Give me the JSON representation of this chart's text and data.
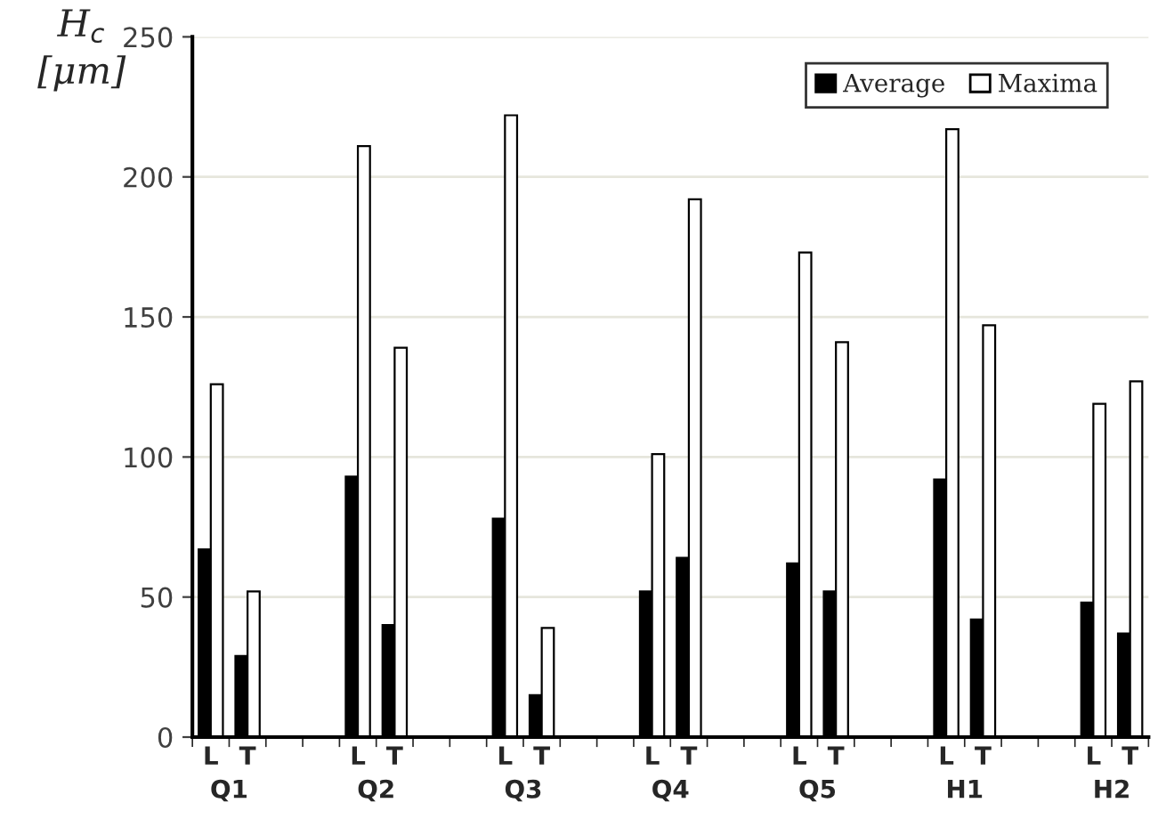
{
  "chart_data": {
    "type": "bar",
    "ylabel": "H$_{c}$\n[μm]",
    "categories": [
      "L",
      "T",
      null,
      null,
      "L",
      "T",
      null,
      null,
      "L",
      "T",
      null,
      null,
      "L",
      "T",
      null,
      null,
      "L",
      "T",
      null,
      null,
      "L",
      "T",
      null,
      null,
      "L",
      "T"
    ],
    "annotations": [
      "Q1",
      "Q2",
      "Q3",
      "Q4",
      "Q5",
      "H1",
      "H2"
    ],
    "series": [
      {
        "name": "Average",
        "color": "#000000",
        "values": [
          67,
          29,
          null,
          null,
          93,
          40,
          null,
          null,
          78,
          15,
          null,
          null,
          52,
          64,
          null,
          null,
          62,
          52,
          null,
          null,
          92,
          42,
          null,
          null,
          48,
          37
        ]
      },
      {
        "name": "Maxima",
        "color": "#ffffff",
        "values": [
          126,
          52,
          null,
          null,
          211,
          139,
          null,
          null,
          222,
          39,
          null,
          null,
          101,
          192,
          null,
          null,
          173,
          141,
          null,
          null,
          217,
          147,
          null,
          null,
          119,
          127
        ]
      }
    ],
    "ylim": [
      0,
      250
    ],
    "yticks": [
      0,
      50,
      100,
      150,
      200,
      250
    ],
    "grid": "y",
    "legend": "top right"
  }
}
